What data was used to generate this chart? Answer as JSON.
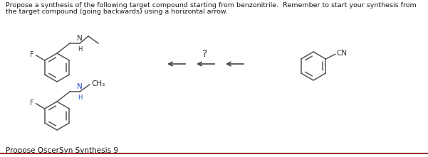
{
  "title_line1": "Propose a synthesis of the following target compound starting from benzonitrile.  Remember to start your synthesis from",
  "title_line2": "the target compound (going backwards) using a horizontal arrow.",
  "footer_text": "Propose OscerSyn Synthesis 9",
  "question_mark": "?",
  "background_color": "#ffffff",
  "border_color": "#8B0000",
  "text_color": "#1a1a1a",
  "title_fontsize": 6.8,
  "footer_fontsize": 7.5
}
